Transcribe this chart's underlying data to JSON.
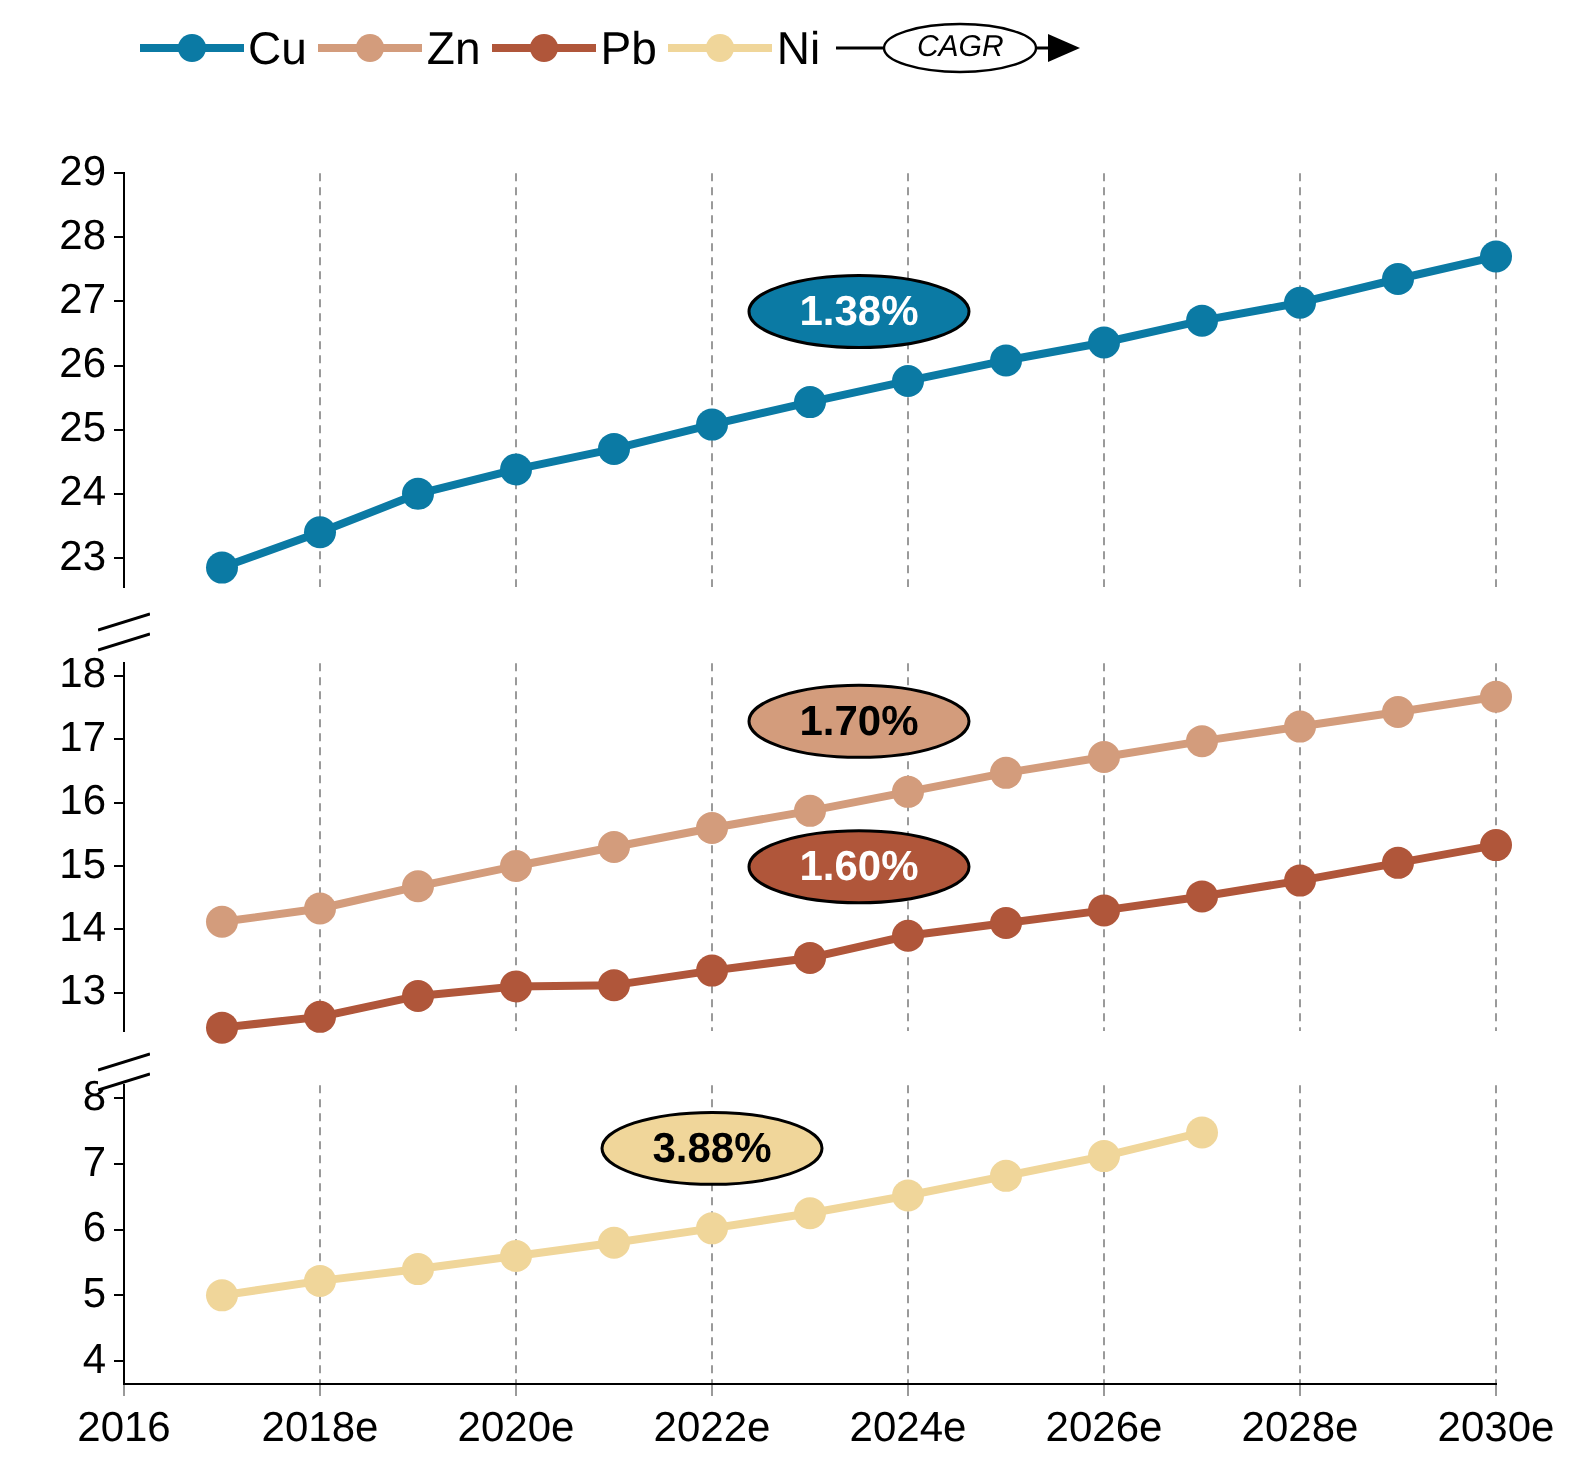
{
  "chart_data": [
    {
      "type": "line",
      "x": [
        2017,
        2018,
        2019,
        2020,
        2021,
        2022,
        2023,
        2024,
        2025,
        2026,
        2027,
        2028,
        2029,
        2030
      ],
      "series": [
        {
          "name": "Cu",
          "color": "#0b7aa4",
          "values": [
            22.85,
            23.4,
            24.0,
            24.38,
            24.7,
            25.08,
            25.43,
            25.76,
            26.08,
            26.36,
            26.7,
            26.98,
            27.35,
            27.7
          ]
        }
      ],
      "xlim": [
        2016,
        2030
      ],
      "xticks": [
        {
          "value": 2016,
          "label": null
        },
        {
          "value": 2018,
          "label": null
        },
        {
          "value": 2020,
          "label": null
        },
        {
          "value": 2022,
          "label": null
        },
        {
          "value": 2024,
          "label": null
        },
        {
          "value": 2026,
          "label": null
        },
        {
          "value": 2028,
          "label": null
        },
        {
          "value": 2030,
          "label": null
        }
      ],
      "ylim": [
        22.55,
        29
      ],
      "yticks": [
        23,
        24,
        25,
        26,
        27,
        28,
        29
      ],
      "tick_labels": "y",
      "grid": "x",
      "legend": "top",
      "marker": "circle",
      "annotations": [
        "CAGR",
        "1.38%"
      ]
    },
    {
      "type": "line",
      "x": [
        2017,
        2018,
        2019,
        2020,
        2021,
        2022,
        2023,
        2024,
        2025,
        2026,
        2027,
        2028,
        2029,
        2030
      ],
      "series": [
        {
          "name": "Zn",
          "color": "#d39c7c",
          "values": [
            14.12,
            14.33,
            14.68,
            15.0,
            15.3,
            15.6,
            15.87,
            16.17,
            16.47,
            16.72,
            16.97,
            17.2,
            17.43,
            17.67
          ]
        },
        {
          "name": "Pb",
          "color": "#b0563a",
          "values": [
            12.45,
            12.62,
            12.95,
            13.1,
            13.12,
            13.35,
            13.55,
            13.9,
            14.1,
            14.3,
            14.52,
            14.77,
            15.05,
            15.33
          ]
        }
      ],
      "xlim": [
        2016,
        2030
      ],
      "xticks": [
        {
          "value": 2016,
          "label": null
        },
        {
          "value": 2018,
          "label": null
        },
        {
          "value": 2020,
          "label": null
        },
        {
          "value": 2022,
          "label": null
        },
        {
          "value": 2024,
          "label": null
        },
        {
          "value": 2026,
          "label": null
        },
        {
          "value": 2028,
          "label": null
        },
        {
          "value": 2030,
          "label": null
        }
      ],
      "ylim": [
        12.4,
        18.2
      ],
      "yticks": [
        13,
        14,
        15,
        16,
        17,
        18
      ],
      "tick_labels": "y",
      "grid": "x",
      "legend": "top",
      "marker": "circle",
      "annotations": [
        "1.70%",
        "1.60%"
      ]
    },
    {
      "type": "line",
      "x": [
        2017,
        2018,
        2019,
        2020,
        2021,
        2022,
        2023,
        2024,
        2025,
        2026,
        2027
      ],
      "series": [
        {
          "name": "Ni",
          "color": "#f0d69a",
          "values": [
            5.0,
            5.22,
            5.4,
            5.6,
            5.8,
            6.02,
            6.25,
            6.52,
            6.82,
            7.12,
            7.48
          ]
        }
      ],
      "xlim": [
        2016,
        2030
      ],
      "xticks": [
        2016,
        {
          "value": 2018,
          "label": "2018e"
        },
        {
          "value": 2020,
          "label": "2020e"
        },
        {
          "value": 2022,
          "label": "2022e"
        },
        {
          "value": 2024,
          "label": "2024e"
        },
        {
          "value": 2026,
          "label": "2026e"
        },
        {
          "value": 2028,
          "label": "2028e"
        },
        {
          "value": 2030,
          "label": "2030e"
        }
      ],
      "ylim": [
        3.65,
        8.2
      ],
      "yticks": [
        4,
        5,
        6,
        7,
        8
      ],
      "grid": "x",
      "legend": "top",
      "marker": "circle",
      "annotations": [
        "3.88%"
      ]
    }
  ]
}
